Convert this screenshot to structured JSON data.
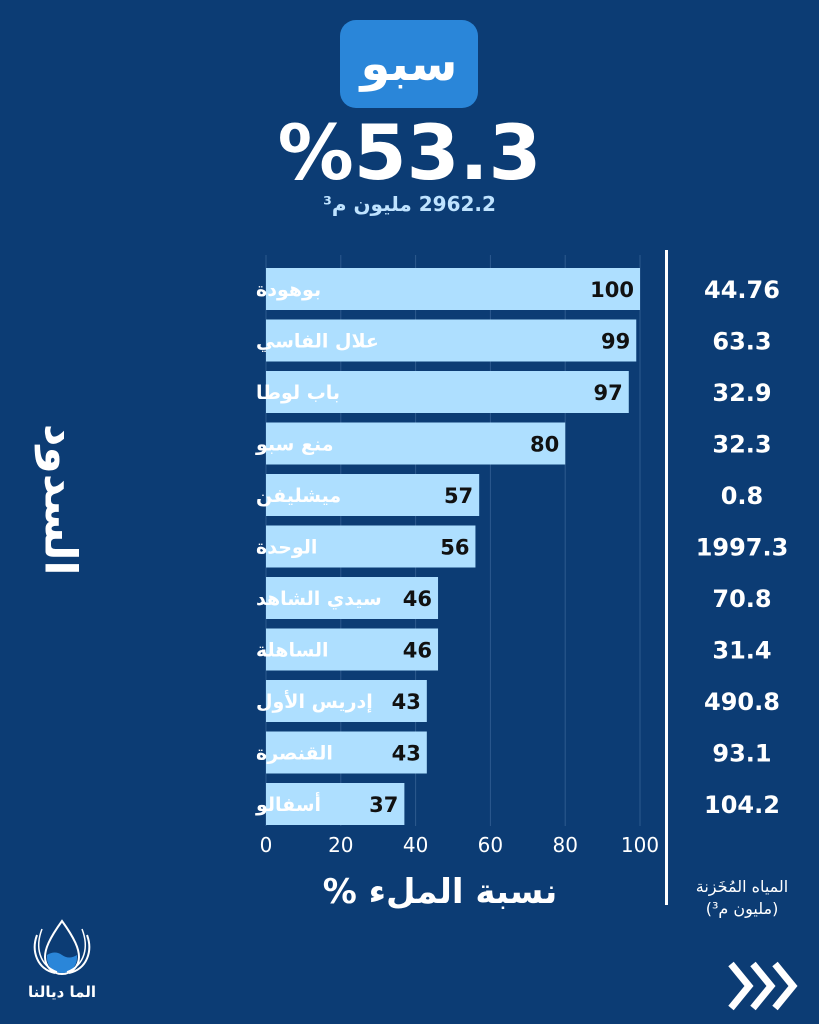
{
  "header": {
    "dam_name": "سبو",
    "fill_percent": "%53.3",
    "total_storage": "2962.2 مليون م³"
  },
  "side_title": "السدود",
  "storage_label_line1": "المياه المُخَزنة",
  "storage_label_line2": "(مليون م³)",
  "logo_text": "الما ديالنا",
  "colors": {
    "background": "#0c3c74",
    "bar": "#aedfff",
    "badge": "#2a86d9"
  },
  "chart_data": {
    "type": "bar",
    "orientation": "horizontal",
    "categories": [
      "بوهودة",
      "علال الفاسي",
      "باب لوطا",
      "منع سبو",
      "ميشليفن",
      "الوحدة",
      "سيدي الشاهد",
      "الساهلة",
      "إدريس الأول",
      "القنصرة",
      "أسفالو"
    ],
    "values": [
      100,
      99,
      97,
      80,
      57,
      56,
      46,
      46,
      43,
      43,
      37
    ],
    "storage": [
      "44.76",
      "63.3",
      "32.9",
      "32.3",
      "0.8",
      "1997.3",
      "70.8",
      "31.4",
      "490.8",
      "93.1",
      "104.2"
    ],
    "xlabel": "نسبة الملء %",
    "ylabel": "السدود",
    "xlim": [
      0,
      100
    ],
    "xticks": [
      0,
      20,
      40,
      60,
      80,
      100
    ],
    "grid": true
  }
}
